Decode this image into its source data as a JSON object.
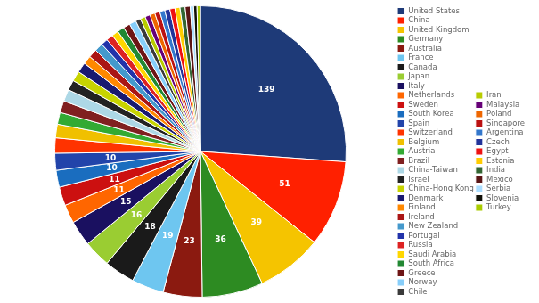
{
  "chart_data": {
    "type": "pie",
    "categories": [
      "United States",
      "China",
      "United Kingdom",
      "Germany",
      "Australia",
      "France",
      "Canada",
      "Japan",
      "Italy",
      "Netherlands",
      "Sweden",
      "South Korea",
      "Spain",
      "Switzerland",
      "Belgium",
      "Austria",
      "Brazil",
      "China-Taiwan",
      "Israel",
      "China-Hong Kong",
      "Denmark",
      "Finland",
      "Ireland",
      "New Zealand",
      "Portugal",
      "Russia",
      "Saudi Arabia",
      "South Africa",
      "Greece",
      "Norway",
      "Chile",
      "Iran",
      "Malaysia",
      "Poland",
      "Singapore",
      "Argentina",
      "Czech",
      "Egypt",
      "Estonia",
      "India",
      "Mexico",
      "Serbia",
      "Slovenia",
      "Turkey"
    ],
    "values": [
      139,
      51,
      39,
      36,
      23,
      19,
      18,
      16,
      15,
      11,
      11,
      10,
      10,
      9,
      8,
      7,
      7,
      7,
      6,
      6,
      6,
      5,
      5,
      5,
      4,
      4,
      4,
      4,
      4,
      4,
      3,
      3,
      3,
      3,
      3,
      3,
      3,
      3,
      3,
      3,
      3,
      2,
      2,
      2
    ],
    "value_labels": [
      "139",
      "51",
      "39",
      "36",
      "23",
      "19",
      "18",
      "16",
      "15",
      "11",
      "11",
      "10",
      "10",
      null,
      null,
      null,
      null,
      null,
      null,
      null,
      null,
      null,
      null,
      null,
      null,
      null,
      null,
      null,
      null,
      null,
      null,
      null,
      null,
      null,
      null,
      null,
      null,
      null,
      null,
      null,
      null,
      null,
      null,
      null
    ],
    "colors": [
      "#1e3a78",
      "#ff2000",
      "#f5c400",
      "#2d8b22",
      "#8b1a10",
      "#6ec6f0",
      "#1a1a1a",
      "#9acd32",
      "#1a1060",
      "#ff6600",
      "#cc1010",
      "#1a6dbf",
      "#2244aa",
      "#ff3300",
      "#f0c000",
      "#33aa33",
      "#802020",
      "#add8e6",
      "#222222",
      "#c8d400",
      "#191970",
      "#ff8800",
      "#aa1515",
      "#4499cc",
      "#2233aa",
      "#dd2222",
      "#ffd700",
      "#228833",
      "#6e1515",
      "#87cefa",
      "#3a3a3a",
      "#b8cc00",
      "#660077",
      "#ee6600",
      "#bb1111",
      "#3377cc",
      "#22339a",
      "#ee1111",
      "#ffcc00",
      "#336633",
      "#5a1515",
      "#aaddff",
      "#101008",
      "#aacc00"
    ],
    "data_labels": true,
    "legend": "right"
  }
}
